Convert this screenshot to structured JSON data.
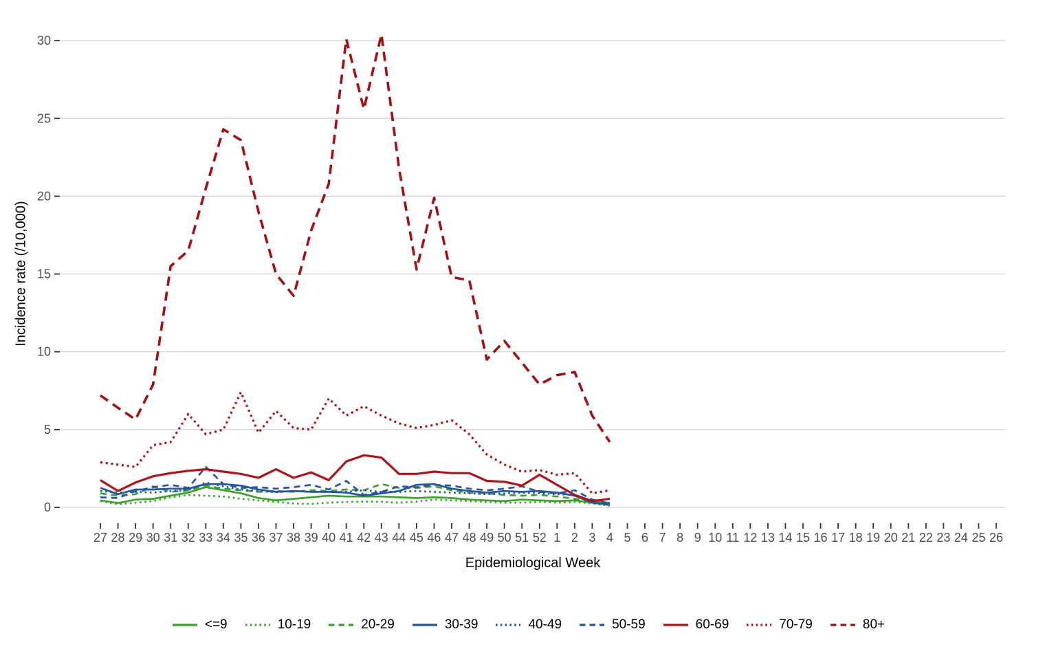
{
  "chart_data": {
    "type": "line",
    "title": "",
    "xlabel": "Epidemiological Week",
    "ylabel": "Incidence rate (/10,000)",
    "x_categories": [
      "27",
      "28",
      "29",
      "30",
      "31",
      "32",
      "33",
      "34",
      "35",
      "36",
      "37",
      "38",
      "39",
      "40",
      "41",
      "42",
      "43",
      "44",
      "45",
      "46",
      "47",
      "48",
      "49",
      "50",
      "51",
      "52",
      "1",
      "2",
      "3",
      "4",
      "5",
      "6",
      "7",
      "8",
      "9",
      "10",
      "11",
      "12",
      "13",
      "14",
      "15",
      "16",
      "17",
      "18",
      "19",
      "20",
      "21",
      "22",
      "23",
      "24",
      "25",
      "26"
    ],
    "y_ticks": [
      0,
      5,
      10,
      15,
      20,
      25,
      30
    ],
    "ylim": [
      0,
      30.5
    ],
    "grid": "horizontal-major-only",
    "legend_position": "bottom",
    "colors": {
      "green": "#3BA22C",
      "blue": "#2456A4",
      "red": "#B01217",
      "dark_red": "#A50F14",
      "gridline": "#D5D5D5",
      "tick_mark": "#333333",
      "tick_label": "#4D4D4D"
    },
    "series": [
      {
        "name": "<=9",
        "color": "#3BA22C",
        "style": "solid",
        "values": [
          0.45,
          0.28,
          0.5,
          0.55,
          0.75,
          0.95,
          1.3,
          1.1,
          0.9,
          0.6,
          0.45,
          0.55,
          0.65,
          0.75,
          0.7,
          0.7,
          0.7,
          0.65,
          0.6,
          0.65,
          0.6,
          0.5,
          0.45,
          0.4,
          0.5,
          0.45,
          0.4,
          0.45,
          0.3,
          0.15
        ]
      },
      {
        "name": "10-19",
        "color": "#3BA22C",
        "style": "dotted",
        "values": [
          0.4,
          0.2,
          0.3,
          0.4,
          0.65,
          0.8,
          0.75,
          0.7,
          0.55,
          0.45,
          0.35,
          0.25,
          0.22,
          0.3,
          0.35,
          0.37,
          0.36,
          0.3,
          0.37,
          0.5,
          0.45,
          0.4,
          0.35,
          0.3,
          0.3,
          0.35,
          0.3,
          0.35,
          0.25,
          0.1
        ]
      },
      {
        "name": "20-29",
        "color": "#3BA22C",
        "style": "dashed",
        "values": [
          0.9,
          0.75,
          0.85,
          1.35,
          1.0,
          1.1,
          1.4,
          1.2,
          1.1,
          1.0,
          1.05,
          1.0,
          1.1,
          1.05,
          1.15,
          1.1,
          1.5,
          1.25,
          1.25,
          1.35,
          1.1,
          0.95,
          0.9,
          0.8,
          0.75,
          0.8,
          0.7,
          0.55,
          0.35,
          0.3
        ]
      },
      {
        "name": "30-39",
        "color": "#2456A4",
        "style": "solid",
        "values": [
          1.25,
          0.85,
          1.15,
          1.15,
          1.2,
          1.2,
          1.5,
          1.5,
          1.4,
          1.15,
          1.0,
          1.05,
          1.0,
          1.0,
          0.95,
          0.75,
          0.9,
          1.05,
          1.45,
          1.5,
          1.2,
          1.05,
          0.95,
          1.05,
          1.0,
          1.05,
          0.95,
          0.75,
          0.3,
          0.2
        ]
      },
      {
        "name": "40-49",
        "color": "#2456A4",
        "style": "dotted",
        "values": [
          1.05,
          0.95,
          1.0,
          0.95,
          1.05,
          1.1,
          1.6,
          1.35,
          1.15,
          1.05,
          0.97,
          1.05,
          1.0,
          1.0,
          1.0,
          1.1,
          1.0,
          1.0,
          1.05,
          1.0,
          0.95,
          0.9,
          0.85,
          0.9,
          0.95,
          0.9,
          0.85,
          0.8,
          0.3,
          0.15
        ]
      },
      {
        "name": "50-59",
        "color": "#2456A4",
        "style": "dashed",
        "values": [
          0.65,
          0.6,
          1.05,
          1.3,
          1.45,
          1.25,
          2.6,
          1.5,
          1.25,
          1.3,
          1.2,
          1.3,
          1.45,
          1.15,
          1.7,
          0.8,
          1.0,
          1.35,
          1.3,
          1.45,
          1.4,
          1.2,
          1.1,
          1.2,
          1.35,
          1.0,
          0.9,
          1.1,
          0.5,
          0.25
        ]
      },
      {
        "name": "60-69",
        "color": "#B01217",
        "style": "solid",
        "values": [
          1.75,
          1.05,
          1.6,
          2.0,
          2.2,
          2.35,
          2.45,
          2.3,
          2.15,
          1.9,
          2.45,
          1.9,
          2.25,
          1.75,
          2.95,
          3.35,
          3.2,
          2.15,
          2.15,
          2.3,
          2.2,
          2.2,
          1.7,
          1.65,
          1.4,
          2.1,
          1.45,
          0.8,
          0.4,
          0.55
        ]
      },
      {
        "name": "70-79",
        "color": "#B01217",
        "style": "dotted",
        "values": [
          2.9,
          2.75,
          2.6,
          4.0,
          4.2,
          6.0,
          4.7,
          5.0,
          7.4,
          4.8,
          6.2,
          5.1,
          5.0,
          7.0,
          5.9,
          6.5,
          5.9,
          5.4,
          5.1,
          5.3,
          5.6,
          4.7,
          3.4,
          2.75,
          2.3,
          2.4,
          2.1,
          2.2,
          0.9,
          1.1
        ]
      },
      {
        "name": "80+",
        "color": "#A50F14",
        "style": "dashed",
        "values": [
          7.2,
          6.4,
          5.65,
          7.9,
          15.5,
          16.5,
          20.5,
          24.3,
          23.6,
          19.0,
          15.0,
          13.6,
          17.8,
          20.8,
          30.1,
          25.6,
          30.4,
          21.8,
          15.3,
          19.9,
          14.8,
          14.6,
          9.5,
          10.7,
          9.3,
          7.9,
          8.5,
          8.7,
          5.9,
          4.2
        ]
      }
    ]
  }
}
